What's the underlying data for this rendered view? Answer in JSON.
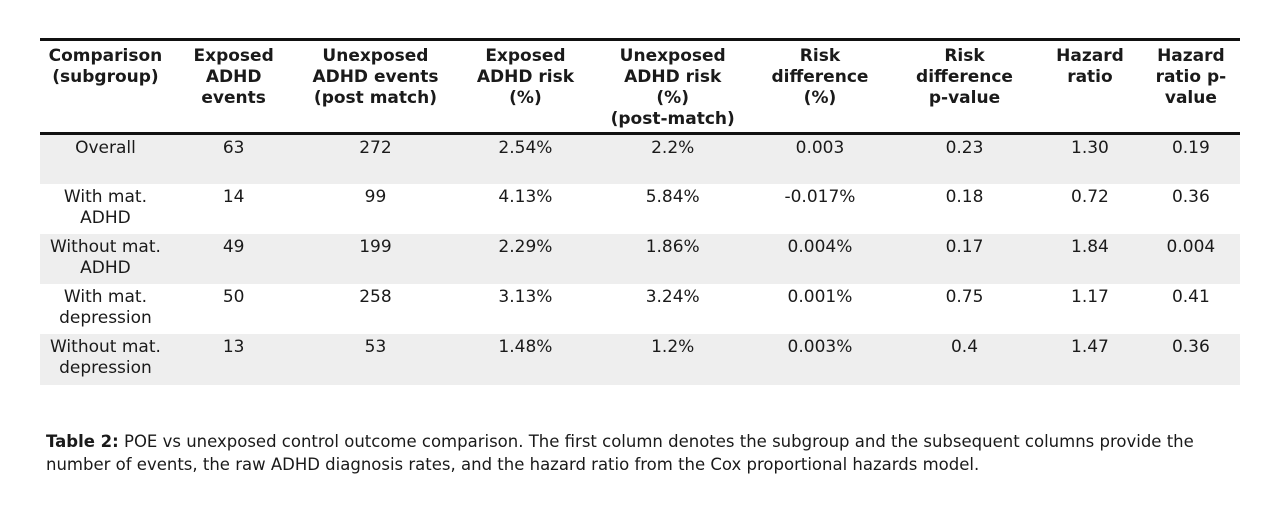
{
  "table": {
    "headers": [
      "Comparison\n(subgroup)",
      "Exposed\nADHD\nevents",
      "Unexposed\nADHD events\n(post match)",
      "Exposed\nADHD risk\n(%)",
      "Unexposed\nADHD risk\n(%)\n(post-match)",
      "Risk\ndifference\n(%)",
      "Risk\ndifference\np-value",
      "Hazard\nratio",
      "Hazard\nratio p-\nvalue"
    ],
    "rows": [
      [
        "Overall",
        "63",
        "272",
        "2.54%",
        "2.2%",
        "0.003",
        "0.23",
        "1.30",
        "0.19"
      ],
      [
        "With mat.\nADHD",
        "14",
        "99",
        "4.13%",
        "5.84%",
        "-0.017%",
        "0.18",
        "0.72",
        "0.36"
      ],
      [
        "Without mat.\nADHD",
        "49",
        "199",
        "2.29%",
        "1.86%",
        "0.004%",
        "0.17",
        "1.84",
        "0.004"
      ],
      [
        "With mat.\ndepression",
        "50",
        "258",
        "3.13%",
        "3.24%",
        "0.001%",
        "0.75",
        "1.17",
        "0.41"
      ],
      [
        "Without mat.\ndepression",
        "13",
        "53",
        "1.48%",
        "1.2%",
        "0.003%",
        "0.4",
        "1.47",
        "0.36"
      ]
    ]
  },
  "caption": {
    "label": "Table 2:",
    "text": " POE vs unexposed control outcome comparison. The first column denotes the subgroup and the subsequent columns provide the number of events, the raw ADHD diagnosis rates, and the hazard ratio from the Cox proportional hazards model."
  }
}
